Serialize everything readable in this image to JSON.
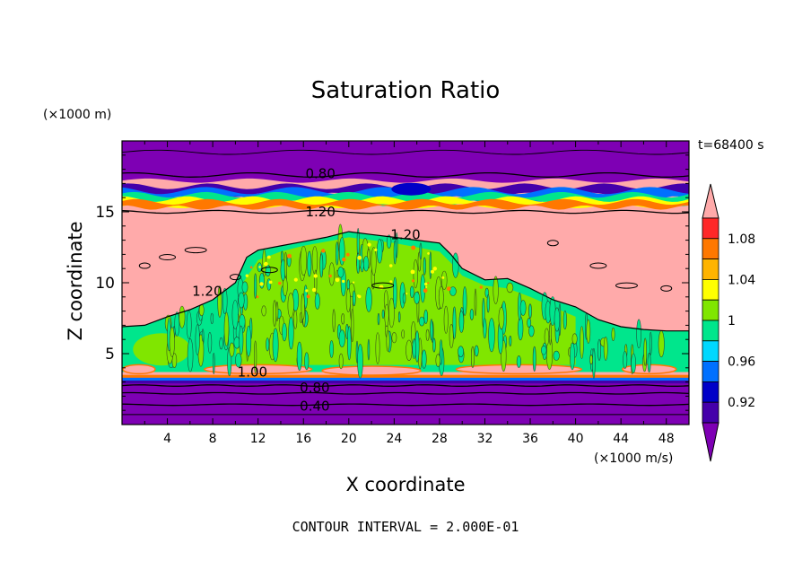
{
  "chart_data": {
    "type": "heatmap",
    "title": "Saturation Ratio",
    "xlabel": "X coordinate",
    "ylabel": "Z coordinate",
    "x_unit": "(×1000 m/s)",
    "y_unit": "(×1000 m)",
    "time_label": "t=68400 s",
    "footer": "CONTOUR INTERVAL = 2.000E-01",
    "xlim": [
      0,
      50
    ],
    "ylim": [
      0,
      20
    ],
    "x_ticks": [
      4,
      8,
      12,
      16,
      20,
      24,
      28,
      32,
      36,
      40,
      44,
      48
    ],
    "y_ticks": [
      5,
      10,
      15
    ],
    "contour_interval": 0.2,
    "contour_labels": [
      {
        "text": "0.80",
        "x": 17.5,
        "z": 17.7
      },
      {
        "text": "1.20",
        "x": 17.5,
        "z": 15.0
      },
      {
        "text": "1.20",
        "x": 25.0,
        "z": 13.4
      },
      {
        "text": "1.20",
        "x": 7.5,
        "z": 9.4
      },
      {
        "text": "0.80",
        "x": 17.0,
        "z": 2.6
      },
      {
        "text": "0.40",
        "x": 17.0,
        "z": 1.3
      },
      {
        "text": "1.00",
        "x": 11.5,
        "z": 3.7
      }
    ],
    "colorbar": {
      "levels": [
        0.92,
        0.96,
        1,
        1.04,
        1.08
      ],
      "colors": [
        "#7e00b4",
        "#4400aa",
        "#0000c8",
        "#0070ff",
        "#00d8ff",
        "#00e68c",
        "#80e600",
        "#ffff00",
        "#ffb400",
        "#ff7800",
        "#ff2828",
        "#ffaaaa"
      ],
      "extend": "both"
    }
  }
}
